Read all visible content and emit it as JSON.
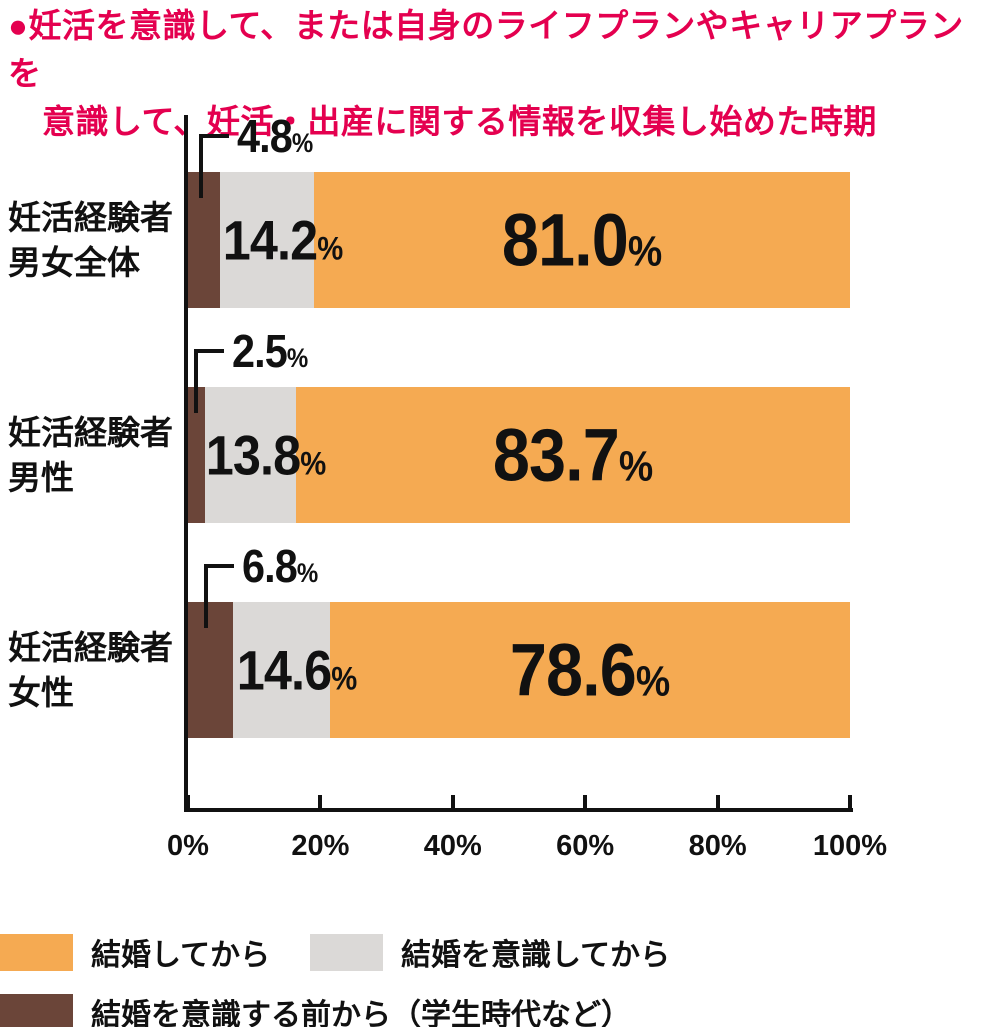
{
  "title": {
    "bullet": "●",
    "line1": "妊活を意識して、または自身のライフプランやキャリアプランを",
    "line2": "意識して、妊活・出産に関する情報を収集し始めた時期",
    "color": "#E4004F"
  },
  "chart_data": {
    "type": "bar",
    "orientation": "horizontal",
    "stacked": true,
    "unit": "%",
    "categories": [
      "妊活経験者 男女全体",
      "妊活経験者 男性",
      "妊活経験者 女性"
    ],
    "category_lines": [
      [
        "妊活経験者",
        "男女全体"
      ],
      [
        "妊活経験者",
        "男性"
      ],
      [
        "妊活経験者",
        "女性"
      ]
    ],
    "category_keys": [
      "overall",
      "men",
      "women"
    ],
    "series": [
      {
        "name": "結婚してから",
        "key": "after-marriage",
        "color": "#F5AA52",
        "values": [
          81.0,
          83.7,
          78.6
        ]
      },
      {
        "name": "結婚を意識してから",
        "key": "after-awareness",
        "color": "#DBD9D7",
        "values": [
          14.2,
          13.8,
          14.6
        ]
      },
      {
        "name": "結婚を意識する前から（学生時代など）",
        "key": "before-awareness",
        "color": "#6B4539",
        "values": [
          4.8,
          2.5,
          6.8
        ]
      }
    ],
    "segment_order_left_to_right": [
      "結婚を意識する前から（学生時代など）",
      "結婚を意識してから",
      "結婚してから"
    ],
    "x_ticks": [
      "0%",
      "20%",
      "40%",
      "60%",
      "80%",
      "100%"
    ],
    "xlim": [
      0,
      100
    ],
    "grid": false,
    "legend_position": "bottom"
  },
  "legend": {
    "items": [
      {
        "label": "結婚してから",
        "color": "#F5AA52"
      },
      {
        "label": "結婚を意識してから",
        "color": "#DBD9D7"
      },
      {
        "label": "結婚を意識する前から（学生時代など）",
        "color": "#6B4539"
      }
    ]
  },
  "colors": {
    "title": "#E4004F",
    "axis": "#111111",
    "text": "#111111",
    "background": "#FFFFFF"
  }
}
